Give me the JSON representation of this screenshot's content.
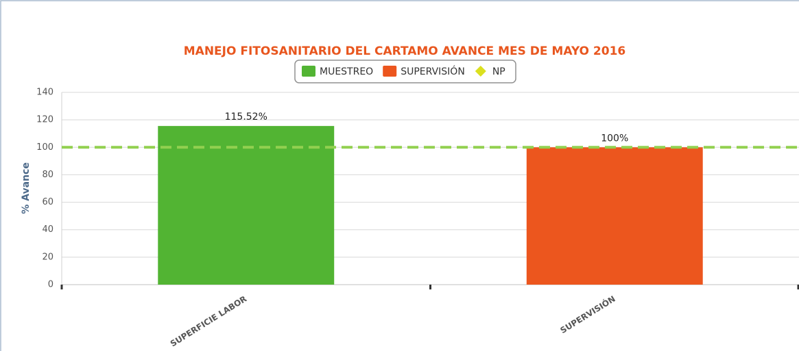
{
  "chart_data": {
    "type": "bar",
    "title": "MANEJO FITOSANITARIO DEL CARTAMO AVANCE MES DE MAYO 2016",
    "y_axis_label": "% Avance",
    "categories": [
      "SUPERFICIE LABOR",
      "SUPERVISIÓN"
    ],
    "series": [
      {
        "name": "MUESTREO",
        "color": "#52b433",
        "values": [
          115.52,
          null
        ],
        "value_labels": [
          "115.52%",
          null
        ]
      },
      {
        "name": "SUPERVISIÓN",
        "color": "#ec561e",
        "values": [
          null,
          100
        ],
        "value_labels": [
          null,
          "100%"
        ]
      },
      {
        "name": "NP",
        "type": "line",
        "color": "#dbe01f",
        "line_color": "#92d050",
        "dashed": true,
        "values": [
          100,
          100
        ]
      }
    ],
    "ylim": [
      0,
      140
    ],
    "yticks": [
      0,
      20,
      40,
      60,
      80,
      100,
      120,
      140
    ],
    "grid": true,
    "legend": "top"
  }
}
